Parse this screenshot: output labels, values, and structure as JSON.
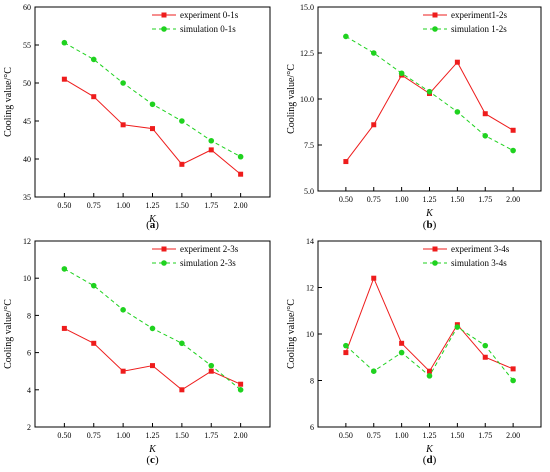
{
  "chart_data": [
    {
      "type": "line",
      "caption_letter": "a",
      "xlabel": "K",
      "ylabel": "Cooling value/°C",
      "ylim": [
        35,
        60
      ],
      "yticks": [
        "35",
        "40",
        "45",
        "50",
        "55",
        "60"
      ],
      "categories": [
        "0.50",
        "0.75",
        "1.00",
        "1.25",
        "1.50",
        "1.75",
        "2.00"
      ],
      "legend_position": "top-right",
      "series": [
        {
          "name": "experiment  0-1s",
          "color": "#ee1c1c",
          "marker": "square",
          "dash": "solid",
          "values": [
            50.5,
            48.2,
            44.5,
            44.0,
            39.3,
            41.2,
            38.0
          ]
        },
        {
          "name": "simulation  0-1s",
          "color": "#1fd21f",
          "marker": "circle",
          "dash": "dashed",
          "values": [
            55.3,
            53.1,
            50.0,
            47.2,
            45.0,
            42.4,
            40.3
          ]
        }
      ]
    },
    {
      "type": "line",
      "caption_letter": "b",
      "xlabel": "K",
      "ylabel": "Cooling value/°C",
      "ylim": [
        5.0,
        15.0
      ],
      "yticks": [
        "5.0",
        "7.5",
        "10.0",
        "12.5",
        "15.0"
      ],
      "categories": [
        "0.50",
        "0.75",
        "1.00",
        "1.25",
        "1.50",
        "1.75",
        "2.00"
      ],
      "legend_position": "top-right",
      "series": [
        {
          "name": "experiment1-2s",
          "color": "#ee1c1c",
          "marker": "square",
          "dash": "solid",
          "values": [
            6.6,
            8.6,
            11.3,
            10.3,
            12.0,
            9.2,
            8.3
          ]
        },
        {
          "name": "simulation  1-2s",
          "color": "#1fd21f",
          "marker": "circle",
          "dash": "dashed",
          "values": [
            13.4,
            12.5,
            11.4,
            10.4,
            9.3,
            8.0,
            7.2
          ]
        }
      ]
    },
    {
      "type": "line",
      "caption_letter": "c",
      "xlabel": "K",
      "ylabel": "Cooling value/°C",
      "ylim": [
        2,
        12
      ],
      "yticks": [
        "2",
        "4",
        "6",
        "8",
        "10",
        "12"
      ],
      "categories": [
        "0.50",
        "0.75",
        "1.00",
        "1.25",
        "1.50",
        "1.75",
        "2.00"
      ],
      "legend_position": "top-right",
      "series": [
        {
          "name": "experiment  2-3s",
          "color": "#ee1c1c",
          "marker": "square",
          "dash": "solid",
          "values": [
            7.3,
            6.5,
            5.0,
            5.3,
            4.0,
            5.0,
            4.3
          ]
        },
        {
          "name": "simulation  2-3s",
          "color": "#1fd21f",
          "marker": "circle",
          "dash": "dashed",
          "values": [
            10.5,
            9.6,
            8.3,
            7.3,
            6.5,
            5.3,
            4.0
          ]
        }
      ]
    },
    {
      "type": "line",
      "caption_letter": "d",
      "xlabel": "K",
      "ylabel": "Cooling value/°C",
      "ylim": [
        6,
        14
      ],
      "yticks": [
        "6",
        "8",
        "10",
        "12",
        "14"
      ],
      "categories": [
        "0.50",
        "0.75",
        "1.00",
        "1.25",
        "1.50",
        "1.75",
        "2.00"
      ],
      "legend_position": "top-right",
      "series": [
        {
          "name": "experiment  3-4s",
          "color": "#ee1c1c",
          "marker": "square",
          "dash": "solid",
          "values": [
            9.2,
            12.4,
            9.6,
            8.4,
            10.4,
            9.0,
            8.5
          ]
        },
        {
          "name": "simulation   3-4s",
          "color": "#1fd21f",
          "marker": "circle",
          "dash": "dashed",
          "values": [
            9.5,
            8.4,
            9.2,
            8.2,
            10.3,
            9.5,
            8.0
          ]
        }
      ]
    }
  ]
}
